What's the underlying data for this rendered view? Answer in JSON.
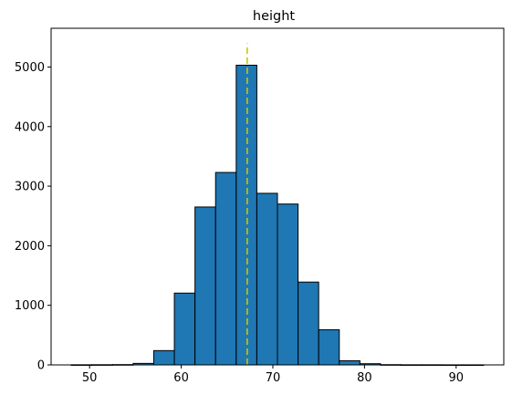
{
  "chart_data": {
    "type": "bar",
    "title": "height",
    "xlabel": "",
    "ylabel": "",
    "xlim": [
      45.8,
      95.2
    ],
    "ylim": [
      0,
      5650
    ],
    "xticks": [
      50,
      60,
      70,
      80,
      90
    ],
    "yticks": [
      0,
      1000,
      2000,
      3000,
      4000,
      5000
    ],
    "grid": false,
    "legend": "none",
    "bar_color": "#1f77b4",
    "edge_color": "#000000",
    "bins": [
      {
        "x0": 48.0,
        "x1": 50.25,
        "value": 2
      },
      {
        "x0": 50.25,
        "x1": 52.5,
        "value": 3
      },
      {
        "x0": 52.5,
        "x1": 54.75,
        "value": 5
      },
      {
        "x0": 54.75,
        "x1": 57.0,
        "value": 25
      },
      {
        "x0": 57.0,
        "x1": 59.25,
        "value": 240
      },
      {
        "x0": 59.25,
        "x1": 61.5,
        "value": 1205
      },
      {
        "x0": 61.5,
        "x1": 63.75,
        "value": 2650
      },
      {
        "x0": 63.75,
        "x1": 66.0,
        "value": 3230
      },
      {
        "x0": 66.0,
        "x1": 68.25,
        "value": 5030
      },
      {
        "x0": 68.25,
        "x1": 70.5,
        "value": 2880
      },
      {
        "x0": 70.5,
        "x1": 72.75,
        "value": 2700
      },
      {
        "x0": 72.75,
        "x1": 75.0,
        "value": 1390
      },
      {
        "x0": 75.0,
        "x1": 77.25,
        "value": 590
      },
      {
        "x0": 77.25,
        "x1": 79.5,
        "value": 70
      },
      {
        "x0": 79.5,
        "x1": 81.75,
        "value": 20
      },
      {
        "x0": 81.75,
        "x1": 84.0,
        "value": 4
      },
      {
        "x0": 84.0,
        "x1": 86.25,
        "value": 2
      },
      {
        "x0": 86.25,
        "x1": 88.5,
        "value": 2
      },
      {
        "x0": 88.5,
        "x1": 90.75,
        "value": 1
      },
      {
        "x0": 90.75,
        "x1": 93.0,
        "value": 1
      }
    ],
    "vline": {
      "x": 67.2,
      "y0": 0,
      "y1": 5400,
      "color": "#c8c800",
      "style": "dashed"
    }
  }
}
